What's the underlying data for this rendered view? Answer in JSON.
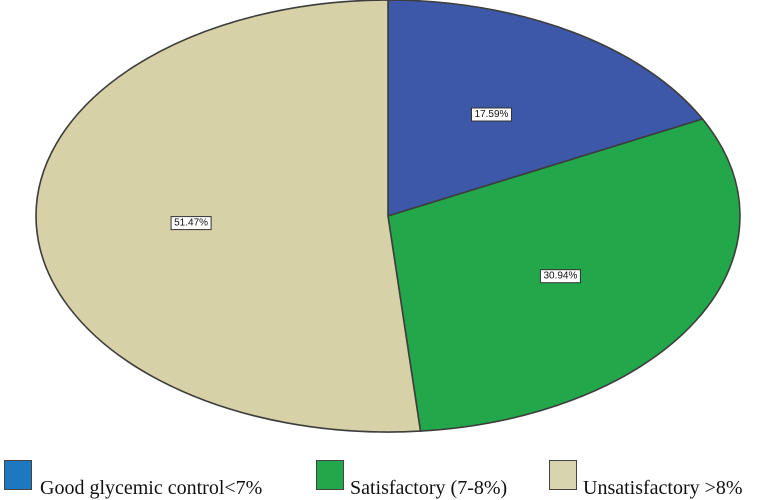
{
  "chart_data": {
    "type": "pie",
    "title": "",
    "slices": [
      {
        "label": "Good glycemic control<7%",
        "value": 17.59,
        "data_label": "17.59%",
        "color": "#3d58a8"
      },
      {
        "label": "Satisfactory (7-8%)",
        "value": 30.94,
        "data_label": "30.94%",
        "color": "#22a84a"
      },
      {
        "label": "Unsatisfactory >8%",
        "value": 51.47,
        "data_label": "51.47%",
        "color": "#d6d1a6"
      }
    ],
    "legend": {
      "placement": "bottom",
      "entries": [
        {
          "label": "Good glycemic control<7%",
          "color": "#1e78bf"
        },
        {
          "label": "Satisfactory (7-8%)",
          "color": "#22a84a"
        },
        {
          "label": "Unsatisfactory >8%",
          "color": "#d9d4b0"
        }
      ]
    }
  }
}
